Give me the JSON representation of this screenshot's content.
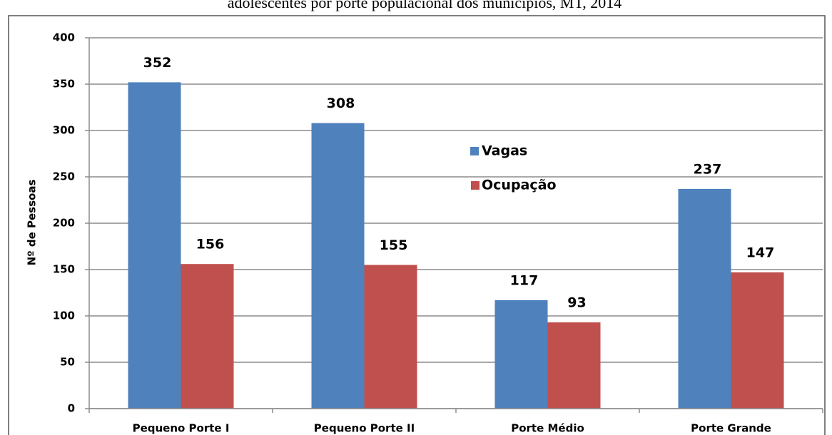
{
  "chart_data": {
    "type": "bar",
    "title": "adolescentes por porte populacional dos municípios, MT, 2014",
    "ylabel": "Nº de Pessoas",
    "categories": [
      "Pequeno Porte I",
      "Pequeno Porte II",
      "Porte Médio",
      "Porte Grande"
    ],
    "series": [
      {
        "name": "Vagas",
        "color": "#4f81bd",
        "values": [
          352,
          308,
          117,
          237
        ]
      },
      {
        "name": "Ocupação",
        "color": "#c0504d",
        "values": [
          156,
          155,
          93,
          147
        ]
      }
    ],
    "ylim": [
      0,
      400
    ],
    "yticks": [
      0,
      50,
      100,
      150,
      200,
      250,
      300,
      350,
      400
    ],
    "grid": true
  }
}
